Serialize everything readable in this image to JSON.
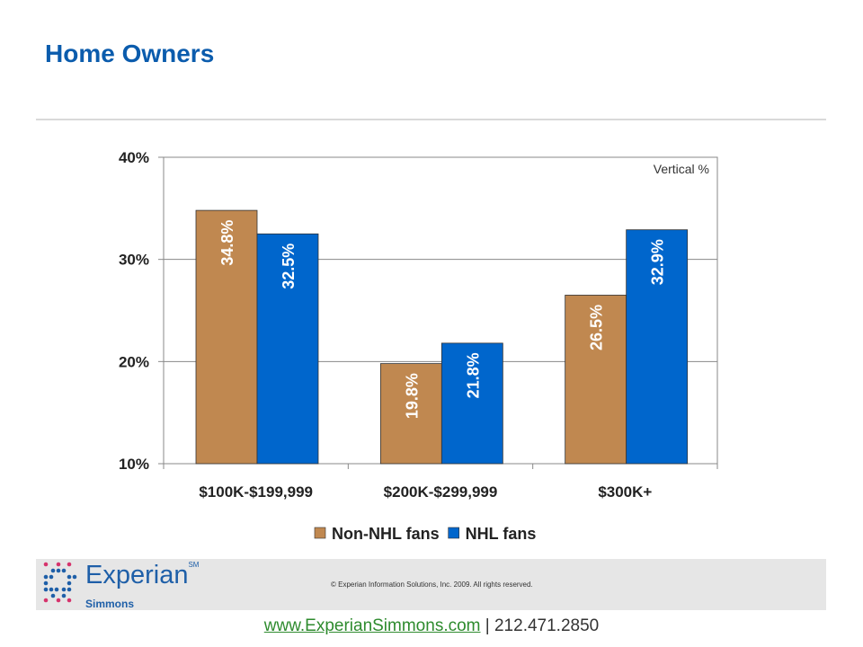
{
  "page": {
    "title": "Home Owners"
  },
  "chart_data": {
    "type": "bar",
    "title": "Home Owners",
    "annotation": "Vertical %",
    "categories": [
      "$100K-$199,999",
      "$200K-$299,999",
      "$300K+"
    ],
    "series": [
      {
        "name": "Non-NHL fans",
        "values": [
          34.8,
          19.8,
          26.5
        ],
        "color": "#C08850"
      },
      {
        "name": "NHL fans",
        "values": [
          32.5,
          21.8,
          32.9
        ],
        "color": "#0066CC"
      }
    ],
    "data_labels": [
      [
        "34.8%",
        "19.8%",
        "26.5%"
      ],
      [
        "32.5%",
        "21.8%",
        "32.9%"
      ]
    ],
    "ylim": [
      10,
      40
    ],
    "yticks": [
      10,
      20,
      30,
      40
    ],
    "ytick_labels": [
      "10%",
      "20%",
      "30%",
      "40%"
    ],
    "grid": true,
    "legend_position": "bottom",
    "xlabel": "",
    "ylabel": ""
  },
  "footer": {
    "logo": "Experian",
    "logo_tm": "SM",
    "logo_sub": "Simmons",
    "copyright": "© Experian Information Solutions, Inc. 2009.  All rights reserved.",
    "url": "www.ExperianSimmons.com",
    "phone": " | 212.471.2850"
  }
}
